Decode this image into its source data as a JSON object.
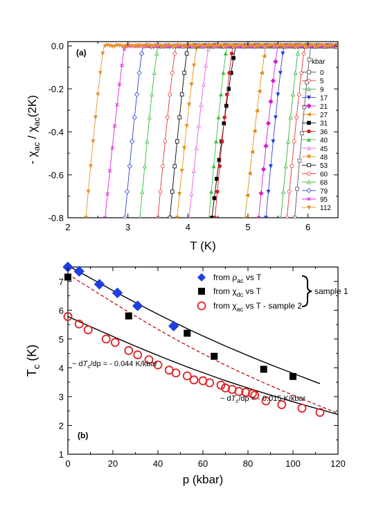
{
  "chart_data": [
    {
      "panel": "(a)",
      "type": "line",
      "xlabel": "T (K)",
      "ylabel": "- χac / χac(2K)",
      "ylabel_parts": [
        "- χ",
        "ac",
        " / χ",
        "ac",
        "(2K)"
      ],
      "xlim": [
        2,
        6.5
      ],
      "ylim": [
        -0.8,
        0.02
      ],
      "xticks": [
        "2",
        "3",
        "4",
        "5",
        "6"
      ],
      "yticks": [
        "0.0",
        "-0.2",
        "-0.4",
        "-0.6",
        "-0.8"
      ],
      "legend_title": "kbar",
      "legend_position": "right",
      "series": [
        {
          "name": "0",
          "color": "#555555",
          "marker": "square-open",
          "tc_onset": 6.05,
          "t_bottom": 5.78
        },
        {
          "name": "5",
          "color": "#e83030",
          "marker": "circle-open",
          "tc_onset": 5.95,
          "t_bottom": 5.65
        },
        {
          "name": "9",
          "color": "#30b030",
          "marker": "triangle-open",
          "tc_onset": 5.85,
          "t_bottom": 5.55
        },
        {
          "name": "17",
          "color": "#2a3fd0",
          "marker": "triangle-down",
          "tc_onset": 5.6,
          "t_bottom": 5.3
        },
        {
          "name": "21",
          "color": "#d020d0",
          "marker": "diamond",
          "tc_onset": 5.5,
          "t_bottom": 5.18
        },
        {
          "name": "27",
          "color": "#e08a10",
          "marker": "triangle-left",
          "tc_onset": 5.3,
          "t_bottom": 4.95
        },
        {
          "name": "31",
          "color": "#000000",
          "marker": "square",
          "tc_onset": 4.8,
          "t_bottom": 4.4
        },
        {
          "name": "36",
          "color": "#d02020",
          "marker": "circle",
          "tc_onset": 4.75,
          "t_bottom": 4.45
        },
        {
          "name": "40",
          "color": "#40c040",
          "marker": "triangle",
          "tc_onset": 4.65,
          "t_bottom": 4.35
        },
        {
          "name": "45",
          "color": "#e060e0",
          "marker": "triangle-open",
          "tc_onset": 4.35,
          "t_bottom": 4.02
        },
        {
          "name": "48",
          "color": "#e89010",
          "marker": "triangle-down",
          "tc_onset": 4.15,
          "t_bottom": 3.82
        },
        {
          "name": "53",
          "color": "#000000",
          "marker": "square-open",
          "tc_onset": 4.0,
          "t_bottom": 3.7
        },
        {
          "name": "60",
          "color": "#e83030",
          "marker": "circle-open",
          "tc_onset": 3.8,
          "t_bottom": 3.5
        },
        {
          "name": "68",
          "color": "#30c030",
          "marker": "triangle-open",
          "tc_onset": 3.5,
          "t_bottom": 3.2
        },
        {
          "name": "79",
          "color": "#2a3fd0",
          "marker": "diamond-open",
          "tc_onset": 3.25,
          "t_bottom": 2.95
        },
        {
          "name": "95",
          "color": "#e020e0",
          "marker": "cross",
          "tc_onset": 2.95,
          "t_bottom": 2.62
        },
        {
          "name": "112",
          "color": "#e89030",
          "marker": "triangle-down",
          "tc_onset": 2.6,
          "t_bottom": 2.3
        }
      ]
    },
    {
      "panel": "(b)",
      "type": "scatter",
      "xlabel": "p (kbar)",
      "ylabel": "Tc (K)",
      "ylabel_parts": [
        "T",
        "c",
        " (K)"
      ],
      "xlim": [
        0,
        120
      ],
      "ylim": [
        1,
        7.5
      ],
      "xticks": [
        "0",
        "20",
        "40",
        "60",
        "80",
        "100",
        "120"
      ],
      "yticks": [
        "1",
        "2",
        "3",
        "4",
        "5",
        "6",
        "7"
      ],
      "legend_position": "top-right",
      "series": [
        {
          "name": "from ρac vs T",
          "name_parts": [
            "from ρ",
            "ac",
            " vs T"
          ],
          "color": "#1f3fe0",
          "marker": "diamond",
          "x": [
            0,
            5,
            14,
            22,
            31,
            47
          ],
          "y": [
            7.5,
            7.35,
            6.9,
            6.6,
            6.15,
            5.45
          ]
        },
        {
          "name": "from χdc vs T",
          "name_parts": [
            "from χ",
            "dc",
            " vs T"
          ],
          "color": "#000000",
          "marker": "square",
          "x": [
            0,
            27,
            53,
            65,
            87,
            100
          ],
          "y": [
            7.15,
            5.8,
            5.2,
            4.4,
            3.95,
            3.7
          ]
        },
        {
          "name": "from χac vs T - sample 2",
          "name_parts": [
            "from χ",
            "ac",
            " vs T -   sample 2"
          ],
          "color": "#e02020",
          "marker": "circle-open",
          "x": [
            0,
            5,
            9,
            17,
            21,
            27,
            31,
            36,
            40,
            45,
            48,
            53,
            56,
            60,
            63,
            68,
            70,
            73,
            76,
            79,
            82,
            83,
            88,
            95,
            104,
            112
          ],
          "y": [
            5.78,
            5.52,
            5.32,
            5.0,
            4.88,
            4.6,
            4.45,
            4.28,
            4.1,
            3.92,
            3.82,
            3.72,
            3.58,
            3.55,
            3.48,
            3.4,
            3.3,
            3.25,
            3.18,
            3.15,
            3.1,
            3.05,
            2.85,
            2.72,
            2.6,
            2.45
          ]
        }
      ],
      "fits": [
        {
          "style": "solid",
          "color": "#000000",
          "x": [
            0,
            112
          ],
          "y": [
            7.55,
            3.45
          ]
        },
        {
          "style": "dashed",
          "color": "#c02020",
          "x": [
            0,
            120
          ],
          "y": [
            7.25,
            2.42
          ]
        },
        {
          "style": "solid",
          "color": "#000000",
          "x": [
            0,
            120
          ],
          "y": [
            5.78,
            2.38
          ]
        }
      ],
      "brace_label": "sample 1",
      "annotations": {
        "slope_left": {
          "pre": "~ d",
          "T": "T",
          "sub": "c",
          "post": "/dp = - 0.044 K/kbar"
        },
        "slope_right": {
          "pre": "~ d",
          "T": "T",
          "sub": "c",
          "post": "/dp = - 0.015 K/kbar"
        }
      }
    }
  ]
}
